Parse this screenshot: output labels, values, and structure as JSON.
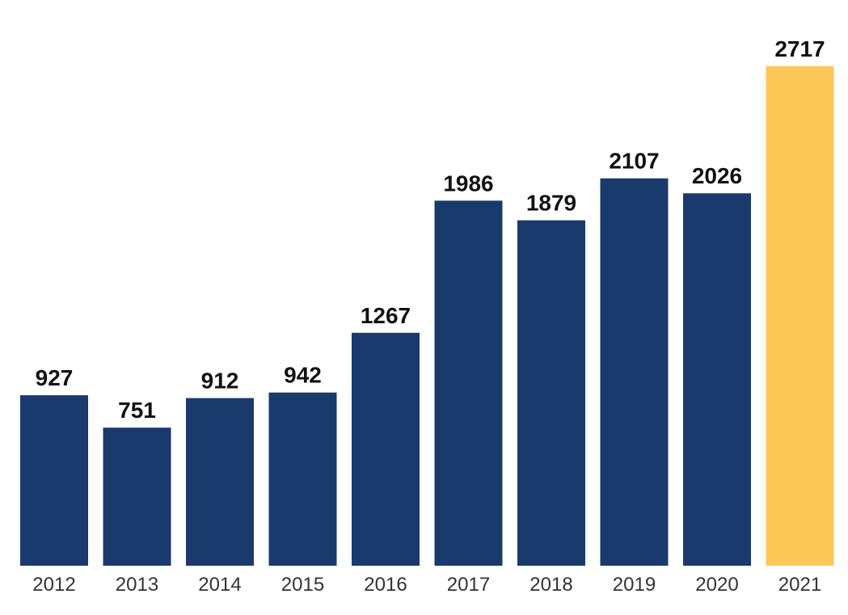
{
  "chart_data": {
    "type": "bar",
    "title": "",
    "xlabel": "",
    "ylabel": "",
    "categories": [
      "2012",
      "2013",
      "2014",
      "2015",
      "2016",
      "2017",
      "2018",
      "2019",
      "2020",
      "2021"
    ],
    "values": [
      927,
      751,
      912,
      942,
      1267,
      1986,
      1879,
      2107,
      2026,
      2717
    ],
    "ylim": [
      0,
      2717
    ],
    "grid": false,
    "legend": "none",
    "data_labels": true,
    "colors": {
      "default_bar": "#1a3a6e",
      "highlight_bar": "#fdc757",
      "highlight_category": "2021"
    }
  }
}
